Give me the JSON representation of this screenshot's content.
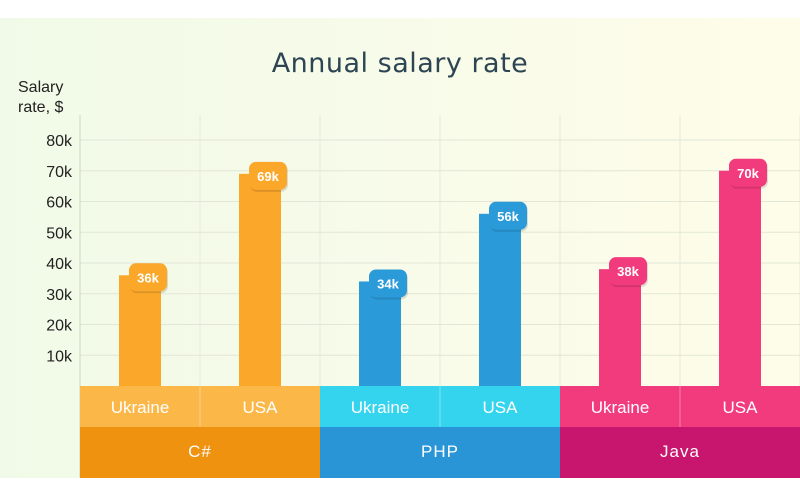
{
  "chart_data": {
    "type": "bar",
    "title": "Annual salary rate",
    "ylabel": "Salary rate, $",
    "ylim": [
      0,
      80000
    ],
    "yticks": [
      {
        "value": 10000,
        "label": "10k"
      },
      {
        "value": 20000,
        "label": "20k"
      },
      {
        "value": 30000,
        "label": "30k"
      },
      {
        "value": 40000,
        "label": "40k"
      },
      {
        "value": 50000,
        "label": "50k"
      },
      {
        "value": 60000,
        "label": "60k"
      },
      {
        "value": 70000,
        "label": "70k"
      },
      {
        "value": 80000,
        "label": "80k"
      }
    ],
    "grid": true,
    "groups": [
      {
        "name": "C#",
        "color": "#fba72a",
        "group_color": "#ef9210",
        "cat_color": "#fbb848",
        "bars": [
          {
            "category": "Ukraine",
            "value": 36000,
            "label": "36k"
          },
          {
            "category": "USA",
            "value": 69000,
            "label": "69k"
          }
        ]
      },
      {
        "name": "PHP",
        "color": "#2b9ad8",
        "group_color": "#2a95d6",
        "cat_color": "#34d4ee",
        "bars": [
          {
            "category": "Ukraine",
            "value": 34000,
            "label": "34k"
          },
          {
            "category": "USA",
            "value": 56000,
            "label": "56k"
          }
        ]
      },
      {
        "name": "Java",
        "color": "#f23b7d",
        "group_color": "#c8156d",
        "cat_color": "#f23b7d",
        "bars": [
          {
            "category": "Ukraine",
            "value": 38000,
            "label": "38k"
          },
          {
            "category": "USA",
            "value": 70000,
            "label": "70k"
          }
        ]
      }
    ]
  }
}
